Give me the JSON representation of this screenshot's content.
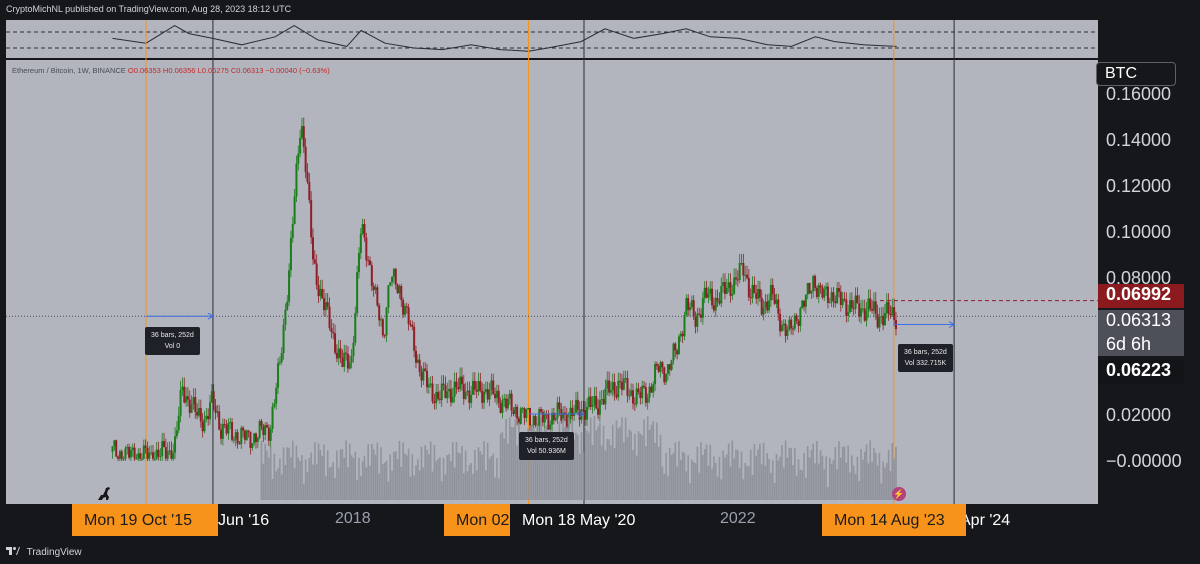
{
  "header": {
    "text": "CryptoMichNL published on TradingView.com, Aug 28, 2023 18:12 UTC"
  },
  "legend": {
    "symbol": "Ethereum / Bitcoin, 1W, BINANCE",
    "ohlc": "O0.06353  H0.06356  L0.06275  C0.06313  −0.00040 (−0.63%)"
  },
  "currency_tag": "BTC",
  "price_labels": {
    "high": "0.06992",
    "last": "0.06313",
    "countdown": "6d 6h",
    "low": "0.06223"
  },
  "measurements": [
    {
      "line1": "36 bars, 252d",
      "line2": "Vol 0"
    },
    {
      "line1": "36 bars, 252d",
      "line2": "Vol 50.936M"
    },
    {
      "line1": "36 bars, 252d",
      "line2": "Vol 332.715K"
    }
  ],
  "time_axis": {
    "year_labels": [
      "2018",
      "2022"
    ],
    "boxes": [
      "Mon 19 Oct '15",
      "Jun '16",
      "Mon 02",
      "Mon 18 May '20",
      "Mon 14 Aug '23",
      "Apr '24"
    ]
  },
  "footer": {
    "brand": "TradingView"
  },
  "colors": {
    "up": "#1b7c1b",
    "down": "#8e1f26",
    "volume": "#8c8f98",
    "orange_marker": "#f7931a",
    "dark_marker": "#2a2d35",
    "measure_arrow": "#3d6fe8"
  },
  "chart_data": {
    "type": "candlestick",
    "symbol": "Ethereum / Bitcoin",
    "timeframe": "1W",
    "exchange": "BINANCE",
    "y_ticks": [
      "0.16000",
      "0.14000",
      "0.12000",
      "0.10000",
      "0.08000",
      "0.02000",
      "−0.00000"
    ],
    "ylim": [
      -0.01,
      0.165
    ],
    "price_path": [
      [
        2015.45,
        0.004
      ],
      [
        2015.6,
        0.0025
      ],
      [
        2015.8,
        0.002
      ],
      [
        2015.95,
        0.0028
      ],
      [
        2016.1,
        0.0055
      ],
      [
        2016.18,
        0.032
      ],
      [
        2016.25,
        0.026
      ],
      [
        2016.33,
        0.02
      ],
      [
        2016.42,
        0.018
      ],
      [
        2016.5,
        0.026
      ],
      [
        2016.58,
        0.015
      ],
      [
        2016.7,
        0.012
      ],
      [
        2016.85,
        0.01
      ],
      [
        2016.95,
        0.011
      ],
      [
        2017.1,
        0.015
      ],
      [
        2017.2,
        0.042
      ],
      [
        2017.3,
        0.085
      ],
      [
        2017.42,
        0.15
      ],
      [
        2017.47,
        0.13
      ],
      [
        2017.55,
        0.085
      ],
      [
        2017.65,
        0.07
      ],
      [
        2017.75,
        0.055
      ],
      [
        2017.85,
        0.042
      ],
      [
        2017.95,
        0.045
      ],
      [
        2018.05,
        0.102
      ],
      [
        2018.12,
        0.09
      ],
      [
        2018.2,
        0.07
      ],
      [
        2018.28,
        0.055
      ],
      [
        2018.35,
        0.08
      ],
      [
        2018.45,
        0.075
      ],
      [
        2018.55,
        0.06
      ],
      [
        2018.65,
        0.042
      ],
      [
        2018.75,
        0.032
      ],
      [
        2018.85,
        0.028
      ],
      [
        2018.95,
        0.03
      ],
      [
        2019.05,
        0.032
      ],
      [
        2019.2,
        0.03
      ],
      [
        2019.35,
        0.031
      ],
      [
        2019.5,
        0.027
      ],
      [
        2019.6,
        0.024
      ],
      [
        2019.7,
        0.021
      ],
      [
        2019.8,
        0.019
      ],
      [
        2019.95,
        0.018
      ],
      [
        2020.1,
        0.02
      ],
      [
        2020.25,
        0.02
      ],
      [
        2020.38,
        0.023
      ],
      [
        2020.5,
        0.024
      ],
      [
        2020.6,
        0.029
      ],
      [
        2020.75,
        0.034
      ],
      [
        2020.85,
        0.03
      ],
      [
        2020.95,
        0.028
      ],
      [
        2021.05,
        0.03
      ],
      [
        2021.15,
        0.04
      ],
      [
        2021.25,
        0.04
      ],
      [
        2021.35,
        0.048
      ],
      [
        2021.45,
        0.068
      ],
      [
        2021.55,
        0.062
      ],
      [
        2021.65,
        0.072
      ],
      [
        2021.75,
        0.07
      ],
      [
        2021.85,
        0.074
      ],
      [
        2021.95,
        0.078
      ],
      [
        2022.05,
        0.084
      ],
      [
        2022.12,
        0.074
      ],
      [
        2022.25,
        0.068
      ],
      [
        2022.35,
        0.072
      ],
      [
        2022.45,
        0.06
      ],
      [
        2022.52,
        0.055
      ],
      [
        2022.6,
        0.063
      ],
      [
        2022.7,
        0.07
      ],
      [
        2022.78,
        0.08
      ],
      [
        2022.85,
        0.072
      ],
      [
        2022.95,
        0.073
      ],
      [
        2023.05,
        0.07
      ],
      [
        2023.15,
        0.068
      ],
      [
        2023.25,
        0.066
      ],
      [
        2023.35,
        0.067
      ],
      [
        2023.45,
        0.063
      ],
      [
        2023.55,
        0.064
      ],
      [
        2023.65,
        0.063
      ]
    ],
    "oscillator_path": [
      [
        2015.45,
        0.55
      ],
      [
        2015.8,
        0.4
      ],
      [
        2016.1,
        0.95
      ],
      [
        2016.25,
        0.7
      ],
      [
        2016.5,
        0.55
      ],
      [
        2016.8,
        0.35
      ],
      [
        2017.15,
        0.6
      ],
      [
        2017.35,
        0.95
      ],
      [
        2017.6,
        0.5
      ],
      [
        2017.9,
        0.3
      ],
      [
        2018.05,
        0.8
      ],
      [
        2018.3,
        0.4
      ],
      [
        2018.6,
        0.25
      ],
      [
        2018.9,
        0.2
      ],
      [
        2019.2,
        0.35
      ],
      [
        2019.5,
        0.2
      ],
      [
        2019.8,
        0.15
      ],
      [
        2020.0,
        0.25
      ],
      [
        2020.35,
        0.45
      ],
      [
        2020.6,
        0.85
      ],
      [
        2020.9,
        0.55
      ],
      [
        2021.2,
        0.7
      ],
      [
        2021.45,
        0.85
      ],
      [
        2021.7,
        0.6
      ],
      [
        2022.0,
        0.55
      ],
      [
        2022.3,
        0.35
      ],
      [
        2022.55,
        0.3
      ],
      [
        2022.8,
        0.6
      ],
      [
        2023.0,
        0.45
      ],
      [
        2023.3,
        0.35
      ],
      [
        2023.65,
        0.3
      ]
    ],
    "oscillator_bands": [
      0.25,
      0.75
    ],
    "vertical_markers": [
      {
        "date": 2015.8,
        "color": "orange"
      },
      {
        "date": 2016.5,
        "color": "dark"
      },
      {
        "date": 2019.8,
        "color": "orange"
      },
      {
        "date": 2020.38,
        "color": "dark"
      },
      {
        "date": 2023.62,
        "color": "orange"
      },
      {
        "date": 2024.25,
        "color": "dark"
      }
    ],
    "measures": [
      {
        "from": 2015.8,
        "to": 2016.5,
        "price": 0.06313
      },
      {
        "from": 2019.8,
        "to": 2020.38,
        "price": 0.0205
      },
      {
        "from": 2023.62,
        "to": 2024.25,
        "price": 0.0595
      }
    ],
    "horizontal_lines": [
      {
        "price": 0.06992,
        "style": "dashed",
        "color": "#8e1f26"
      },
      {
        "price": 0.06313,
        "style": "dotted",
        "color": "#4e5059"
      }
    ]
  }
}
